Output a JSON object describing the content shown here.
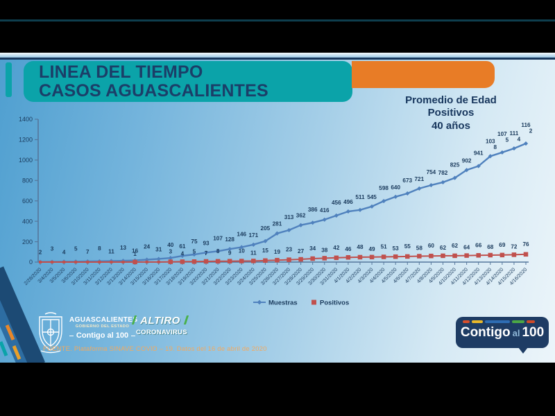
{
  "slide": {
    "title_line1": "LINEA DEL TIEMPO",
    "title_line2": "CASOS AGUASCALIENTES",
    "annotation_line1": "Promedio de Edad",
    "annotation_line2": "Positivos",
    "annotation_line3": "40 años"
  },
  "chart_data": {
    "type": "line",
    "x": [
      "2/28/2020",
      "3/4/2020",
      "3/5/2020",
      "3/6/2020",
      "3/10/2020",
      "3/11/2020",
      "3/12/2020",
      "3/13/2020",
      "3/14/2020",
      "3/15/2020",
      "3/16/2020",
      "3/17/2020",
      "3/18/2020",
      "3/19/2020",
      "3/20/2020",
      "3/21/2020",
      "3/22/2020",
      "3/23/2020",
      "3/24/2020",
      "3/25/2020",
      "3/26/2020",
      "3/27/2020",
      "3/28/2020",
      "3/29/2020",
      "3/30/2020",
      "3/31/2020",
      "4/1/2020",
      "4/2/2020",
      "4/3/2020",
      "4/4/2020",
      "4/5/2020",
      "4/6/2020",
      "4/7/2020",
      "4/8/2020",
      "4/9/2020",
      "4/10/2020",
      "4/11/2020",
      "4/12/2020",
      "4/13/2020",
      "4/14/2020",
      "4/15/2020",
      "4/16/2020"
    ],
    "series": [
      {
        "name": "Muestras",
        "marker": "diamond",
        "color": "#4f81bd",
        "values": [
          2,
          3,
          4,
          5,
          7,
          8,
          11,
          13,
          16,
          24,
          31,
          40,
          61,
          75,
          93,
          107,
          128,
          146,
          171,
          205,
          281,
          313,
          362,
          386,
          416,
          456,
          496,
          511,
          545,
          598,
          640,
          673,
          721,
          754,
          782,
          825,
          902,
          941,
          1038,
          1075,
          1114,
          1162
        ]
      },
      {
        "name": "Positivos",
        "marker": "square",
        "color": "#c0504d",
        "values": [
          null,
          null,
          null,
          null,
          null,
          null,
          null,
          null,
          1,
          null,
          null,
          3,
          4,
          5,
          7,
          8,
          9,
          10,
          11,
          15,
          19,
          23,
          27,
          34,
          38,
          42,
          46,
          48,
          49,
          51,
          53,
          55,
          58,
          60,
          62,
          62,
          64,
          66,
          68,
          69,
          72,
          76
        ]
      }
    ],
    "ylim": [
      0,
      1400
    ],
    "yticks": [
      0,
      200,
      400,
      600,
      800,
      1000,
      1200,
      1400
    ],
    "grid": false,
    "legend_position": "bottom-center",
    "label_color": "#1a3a5c",
    "axis_color": "#55779c"
  },
  "footer": {
    "gov_name": "AGUASCALIENTES",
    "gov_sub": "GOBIERNO DEL ESTADO",
    "gov_slogan": "Contigo al 100",
    "altiro_line1": "ALTIRO",
    "altiro_line2": "CORONAVIRUS",
    "source": "FUENTE. Plataforma SINAVE COVID – 19. Datos del 16 de abril de 2020",
    "badge_contigo": "Contigo",
    "badge_al": "al",
    "badge_100": "100",
    "badge_dash_colors": [
      "#d94f2b",
      "#e8b82a",
      "#2e6db4",
      "#4ca845",
      "#cf4b28"
    ]
  },
  "colors": {
    "teal": "#0ba3a9",
    "orange": "#e87c26",
    "navy_title": "#1b3e68",
    "muestras_blue": "#4f81bd",
    "positivos_red": "#c0504d"
  }
}
